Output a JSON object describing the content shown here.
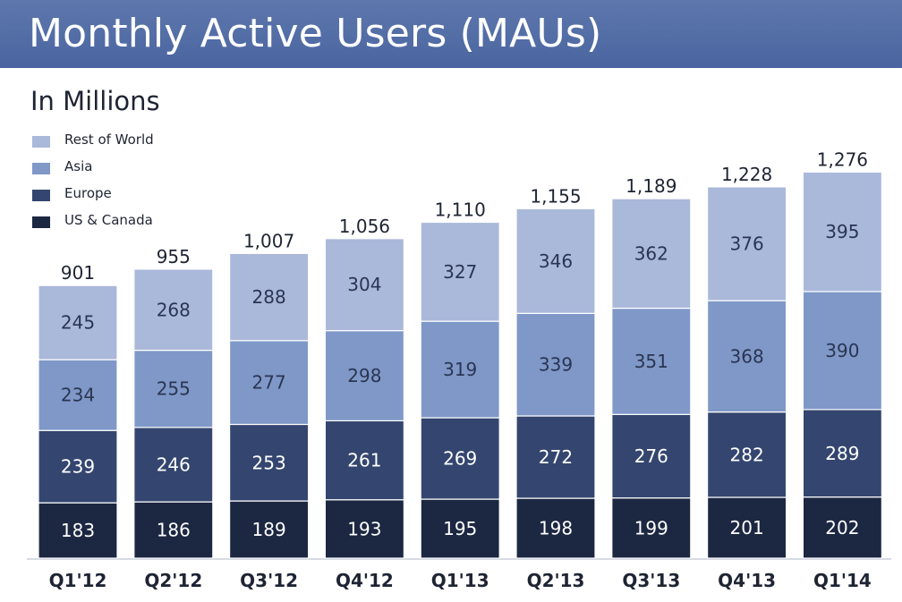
{
  "header": {
    "title": "Monthly Active Users (MAUs)",
    "subtitle": "In Millions"
  },
  "colors": {
    "title_bar": "#4f69a4",
    "rest_of_world": "#aab8da",
    "asia": "#7f98c8",
    "europe": "#34466f",
    "us_canada": "#1c2742"
  },
  "chart_data": {
    "type": "bar",
    "stacked": true,
    "title": "Monthly Active Users (MAUs)",
    "subtitle": "In Millions",
    "xlabel": "",
    "ylabel": "",
    "ylim": [
      0,
      1300
    ],
    "grid": false,
    "legend_position": "top-left",
    "categories": [
      "Q1'12",
      "Q2'12",
      "Q3'12",
      "Q4'12",
      "Q1'13",
      "Q2'13",
      "Q3'13",
      "Q4'13",
      "Q1'14"
    ],
    "series": [
      {
        "name": "US & Canada",
        "color": "#1c2742",
        "label_color": "#ffffff",
        "values": [
          183,
          186,
          189,
          193,
          195,
          198,
          199,
          201,
          202
        ]
      },
      {
        "name": "Europe",
        "color": "#34466f",
        "label_color": "#ffffff",
        "values": [
          239,
          246,
          253,
          261,
          269,
          272,
          276,
          282,
          289
        ]
      },
      {
        "name": "Asia",
        "color": "#7f98c8",
        "label_color": "#2a3552",
        "values": [
          234,
          255,
          277,
          298,
          319,
          339,
          351,
          368,
          390
        ]
      },
      {
        "name": "Rest of World",
        "color": "#aab8da",
        "label_color": "#2a3552",
        "values": [
          245,
          268,
          288,
          304,
          327,
          346,
          362,
          376,
          395
        ]
      }
    ],
    "totals": [
      "901",
      "955",
      "1,007",
      "1,056",
      "1,110",
      "1,155",
      "1,189",
      "1,228",
      "1,276"
    ]
  }
}
